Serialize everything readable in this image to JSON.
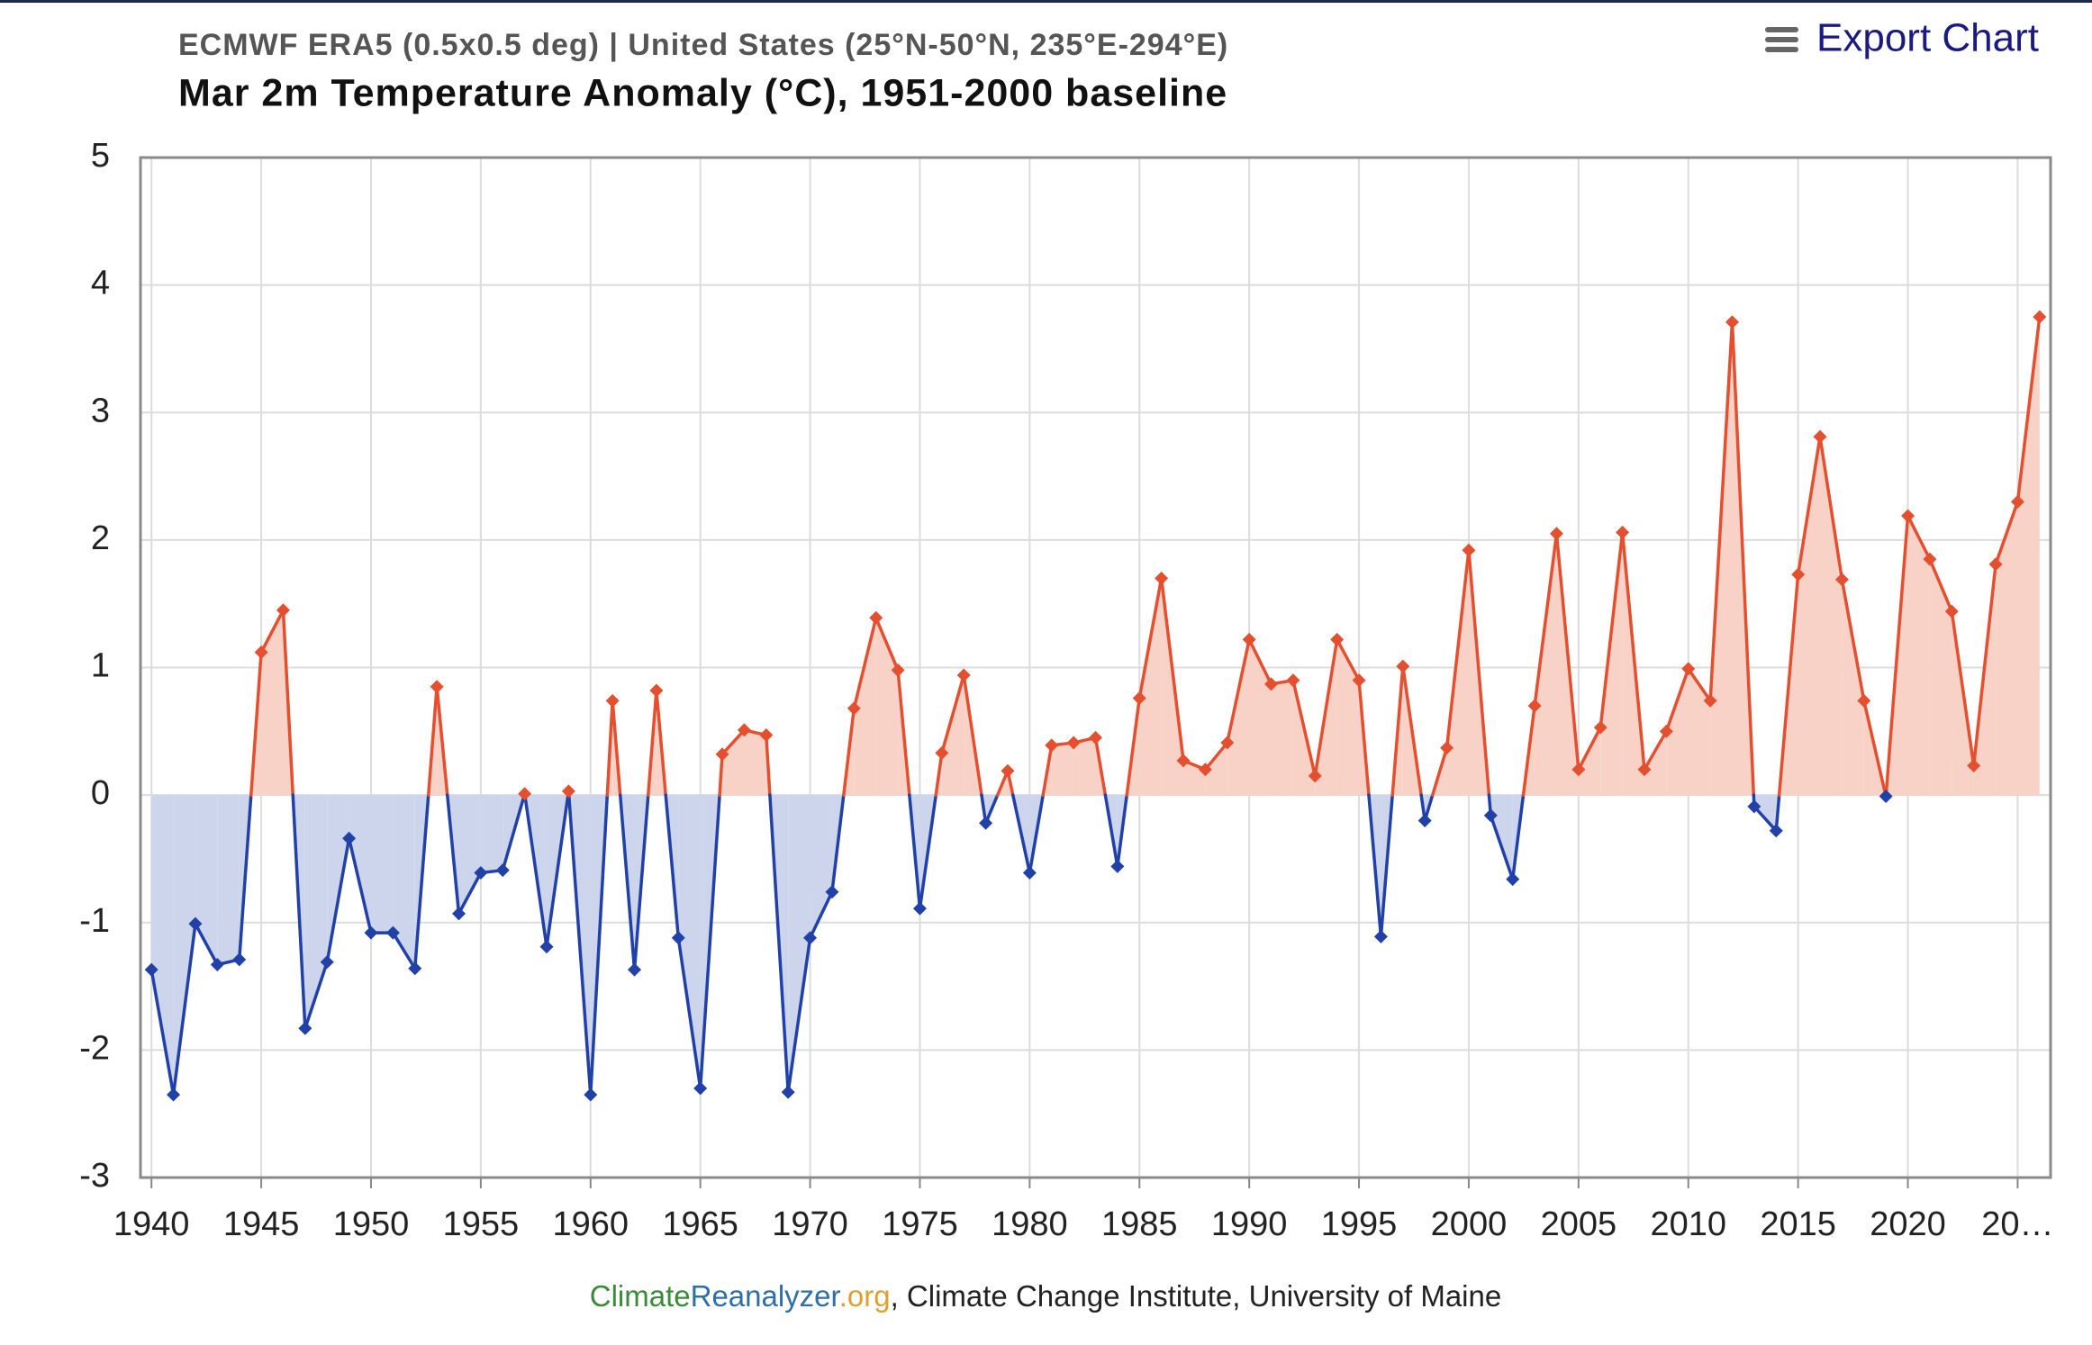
{
  "chart_data": {
    "type": "line",
    "subtitle": "ECMWF ERA5 (0.5x0.5 deg) | United States (25°N-50°N, 235°E-294°E)",
    "title": "Mar 2m Temperature Anomaly (°C), 1951-2000 baseline",
    "export_button": "Export Chart",
    "source": [
      "Climate",
      "Reanalyzer",
      ".org",
      ", Climate Change Institute, University of Maine"
    ],
    "source_colors": [
      "#3a8a3a",
      "#2f6fa8",
      "#e0a030",
      "#222222"
    ],
    "x": [
      1940,
      1941,
      1942,
      1943,
      1944,
      1945,
      1946,
      1947,
      1948,
      1949,
      1950,
      1951,
      1952,
      1953,
      1954,
      1955,
      1956,
      1957,
      1958,
      1959,
      1960,
      1961,
      1962,
      1963,
      1964,
      1965,
      1966,
      1967,
      1968,
      1969,
      1970,
      1971,
      1972,
      1973,
      1974,
      1975,
      1976,
      1977,
      1978,
      1979,
      1980,
      1981,
      1982,
      1983,
      1984,
      1985,
      1986,
      1987,
      1988,
      1989,
      1990,
      1991,
      1992,
      1993,
      1994,
      1995,
      1996,
      1997,
      1998,
      1999,
      2000,
      2001,
      2002,
      2003,
      2004,
      2005,
      2006,
      2007,
      2008,
      2009,
      2010,
      2011,
      2012,
      2013,
      2014,
      2015,
      2016,
      2017,
      2018,
      2019,
      2020,
      2021,
      2022,
      2023,
      2024,
      2025,
      2026
    ],
    "values": [
      -1.37,
      -2.35,
      -1.01,
      -1.33,
      -1.29,
      1.12,
      1.45,
      -1.83,
      -1.31,
      -0.34,
      -1.08,
      -1.08,
      -1.36,
      0.85,
      -0.93,
      -0.61,
      -0.59,
      0.01,
      -1.19,
      0.03,
      -2.35,
      0.74,
      -1.37,
      0.82,
      -1.12,
      -2.3,
      0.32,
      0.51,
      0.47,
      -2.33,
      -1.12,
      -0.76,
      0.68,
      1.39,
      0.98,
      -0.89,
      0.33,
      0.94,
      -0.22,
      0.19,
      -0.61,
      0.39,
      0.41,
      0.45,
      -0.56,
      0.76,
      1.7,
      0.27,
      0.2,
      0.41,
      1.22,
      0.87,
      0.9,
      0.15,
      1.22,
      0.9,
      -1.11,
      1.01,
      -0.2,
      0.37,
      1.92,
      -0.16,
      -0.66,
      0.7,
      2.05,
      0.2,
      0.53,
      2.06,
      0.2,
      0.5,
      0.99,
      0.74,
      3.71,
      -0.09,
      -0.28,
      1.73,
      2.81,
      1.69,
      0.74,
      -0.01,
      2.19,
      1.85,
      1.44,
      0.23,
      1.81,
      2.3,
      3.75
    ],
    "positive_color": "#e4502f",
    "negative_color": "#2140a8",
    "positive_fill": "#f8d2c7",
    "negative_fill": "#ccd5ec",
    "xlim": [
      1939.5,
      2026.5
    ],
    "xticks": [
      1940,
      1945,
      1950,
      1955,
      1960,
      1965,
      1970,
      1975,
      1980,
      1985,
      1990,
      1995,
      2000,
      2005,
      2010,
      2015,
      2020,
      {
        "value": 2025,
        "label": "20…"
      }
    ],
    "ylim": [
      -3,
      5
    ],
    "yticks": [
      -3,
      -2,
      -1,
      0,
      1,
      2,
      3,
      4,
      5
    ],
    "grid": true
  }
}
